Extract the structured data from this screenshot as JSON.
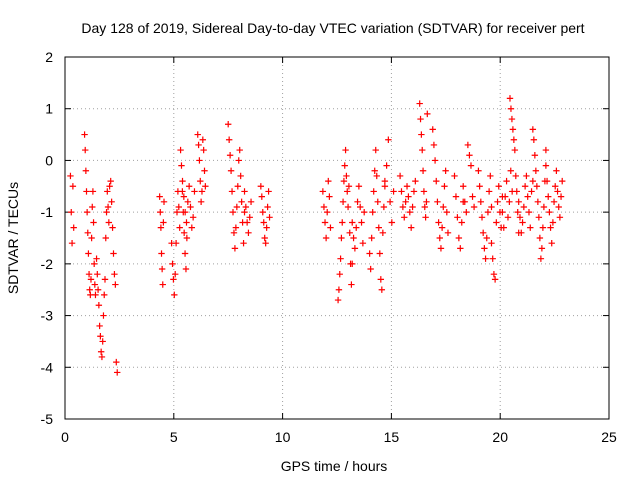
{
  "chart_data": {
    "type": "scatter",
    "title": "Day 128 of 2019, Sidereal Day-to-day VTEC variation (SDTVAR) for receiver pert",
    "xlabel": "GPS time / hours",
    "ylabel": "SDTVAR / TECUs",
    "xlim": [
      0,
      25
    ],
    "ylim": [
      -5,
      2
    ],
    "xticks": [
      "0",
      "5",
      "10",
      "15",
      "20",
      "25"
    ],
    "yticks": [
      "-5",
      "-4",
      "-3",
      "-2",
      "-1",
      "0",
      "1",
      "2"
    ],
    "grid": true,
    "marker": "+",
    "color": "#ff0000",
    "series": [
      {
        "name": "SDTVAR",
        "segments": [
          {
            "x0": 0.25,
            "x1": 0.4,
            "y": [
              -0.3,
              -1.0,
              -1.6,
              -0.5,
              -1.3
            ]
          },
          {
            "x0": 0.9,
            "x1": 1.4,
            "y": [
              0.5,
              0.2,
              -0.2,
              -0.6,
              -1.0,
              -1.4,
              -1.8,
              -2.2,
              -2.5,
              -2.6,
              -2.3,
              -1.5,
              -0.9,
              -0.6,
              -1.2,
              -2.0,
              -2.4,
              -2.6
            ]
          },
          {
            "x0": 1.45,
            "x1": 2.05,
            "y": [
              -1.9,
              -2.2,
              -2.5,
              -2.8,
              -3.2,
              -3.4,
              -3.7,
              -3.8,
              -3.5,
              -3.0,
              -2.6,
              -2.3,
              -1.5,
              -1.0,
              -0.6,
              -0.9,
              -1.2,
              -0.5
            ]
          },
          {
            "x0": 2.1,
            "x1": 2.4,
            "y": [
              -0.4,
              -0.8,
              -1.3,
              -1.8,
              -2.2,
              -2.4,
              -3.9,
              -4.1
            ]
          },
          {
            "x0": 4.35,
            "x1": 4.55,
            "y": [
              -0.7,
              -1.0,
              -1.3,
              -1.8,
              -2.1,
              -2.4,
              -1.2,
              -0.8
            ]
          },
          {
            "x0": 4.9,
            "x1": 5.6,
            "y": [
              -1.6,
              -2.0,
              -2.3,
              -2.6,
              -2.2,
              -1.6,
              -1.0,
              -0.6,
              -0.9,
              -1.3,
              0.2,
              -0.1,
              -0.6,
              -1.0,
              -1.4,
              -1.8,
              -2.1,
              -1.5
            ]
          },
          {
            "x0": 5.4,
            "x1": 5.95,
            "y": [
              -0.4,
              -0.7,
              -1.0,
              -1.2,
              -0.8,
              -0.5,
              -0.9,
              -1.3,
              -1.1,
              -0.6
            ]
          },
          {
            "x0": 6.1,
            "x1": 6.45,
            "y": [
              0.5,
              0.3,
              0.0,
              -0.4,
              -0.8,
              -0.6,
              0.4,
              0.2,
              -0.2,
              -0.5
            ]
          },
          {
            "x0": 7.5,
            "x1": 8.25,
            "y": [
              0.7,
              0.4,
              0.1,
              -0.2,
              -0.6,
              -1.0,
              -1.4,
              -1.7,
              -1.3,
              -0.9,
              -0.5,
              0.0,
              0.2,
              -0.3,
              -0.8,
              -1.2,
              -1.6,
              -1.0
            ]
          },
          {
            "x0": 8.25,
            "x1": 8.55,
            "y": [
              -0.6,
              -0.9,
              -1.2,
              -1.4,
              -1.1,
              -0.8
            ]
          },
          {
            "x0": 9.0,
            "x1": 9.4,
            "y": [
              -0.5,
              -0.7,
              -1.0,
              -1.2,
              -1.5,
              -1.6,
              -1.3,
              -0.9,
              -0.6,
              -1.1
            ]
          },
          {
            "x0": 11.85,
            "x1": 12.2,
            "y": [
              -0.6,
              -0.9,
              -1.2,
              -1.5,
              -1.0,
              -0.4,
              -0.7,
              -1.3
            ]
          },
          {
            "x0": 12.55,
            "x1": 13.2,
            "y": [
              -2.7,
              -2.5,
              -2.2,
              -1.9,
              -1.5,
              -1.2,
              -0.8,
              -0.4,
              -0.1,
              0.2,
              -0.3,
              -0.6,
              -0.9,
              -0.5,
              -1.4,
              -2.0,
              -2.4,
              -2.0
            ]
          },
          {
            "x0": 13.2,
            "x1": 13.75,
            "y": [
              -1.2,
              -1.5,
              -1.7,
              -1.3,
              -0.8,
              -0.5,
              -0.9,
              -1.2,
              -1.6,
              -1.0
            ]
          },
          {
            "x0": 14.0,
            "x1": 14.7,
            "y": [
              -1.8,
              -2.1,
              -1.5,
              -1.0,
              -0.6,
              -0.2,
              0.2,
              -0.3,
              -0.8,
              -1.3,
              -1.8,
              -2.3,
              -2.5,
              -1.4,
              -0.9,
              -0.5
            ]
          },
          {
            "x0": 14.7,
            "x1": 15.1,
            "y": [
              -0.4,
              -0.1,
              0.4,
              -0.8,
              -1.2,
              -0.6
            ]
          },
          {
            "x0": 15.4,
            "x1": 16.1,
            "y": [
              -0.3,
              -0.6,
              -0.9,
              -1.1,
              -0.8,
              -0.5,
              -0.7,
              -1.0,
              -1.3,
              -0.9,
              -0.6,
              -0.4
            ]
          },
          {
            "x0": 16.3,
            "x1": 16.65,
            "y": [
              1.1,
              0.8,
              0.5,
              0.2,
              -0.2,
              -0.6,
              -0.9,
              -1.1,
              -0.8,
              0.9
            ]
          },
          {
            "x0": 16.9,
            "x1": 17.6,
            "y": [
              0.6,
              0.3,
              0.0,
              -0.4,
              -0.8,
              -1.2,
              -1.5,
              -1.7,
              -1.3,
              -0.9,
              -0.5,
              -0.2,
              -1.0,
              -1.4
            ]
          },
          {
            "x0": 17.9,
            "x1": 18.3,
            "y": [
              -0.3,
              -0.7,
              -1.1,
              -1.5,
              -1.7,
              -1.2,
              -0.8
            ]
          },
          {
            "x0": 18.3,
            "x1": 18.8,
            "y": [
              -0.5,
              -0.8,
              -1.0,
              0.3,
              0.1,
              -0.1,
              -0.7,
              -0.9
            ]
          },
          {
            "x0": 19.0,
            "x1": 19.6,
            "y": [
              -0.2,
              -0.5,
              -0.8,
              -1.1,
              -1.4,
              -1.7,
              -1.9,
              -1.5,
              -1.0,
              -0.6,
              -0.3,
              -0.9
            ]
          },
          {
            "x0": 19.6,
            "x1": 20.1,
            "y": [
              -1.6,
              -1.9,
              -2.2,
              -2.3,
              -1.2,
              -0.8,
              -0.5,
              -1.0,
              -1.3,
              -0.7
            ]
          },
          {
            "x0": 20.1,
            "x1": 20.55,
            "y": [
              -1.0,
              -1.3,
              -0.7,
              -0.4,
              -1.1,
              -0.8,
              -0.2,
              -0.6
            ]
          },
          {
            "x0": 20.45,
            "x1": 20.85,
            "y": [
              1.2,
              1.0,
              0.8,
              0.6,
              0.4,
              0.2,
              -0.3,
              -0.6,
              -1.0,
              -1.4
            ]
          },
          {
            "x0": 20.85,
            "x1": 21.5,
            "y": [
              -0.8,
              -1.1,
              -1.4,
              -1.2,
              -0.9,
              -0.5,
              -0.3,
              -0.7,
              -1.0,
              -1.3,
              -0.6,
              -0.4
            ]
          },
          {
            "x0": 21.5,
            "x1": 22.1,
            "y": [
              0.6,
              0.4,
              0.1,
              -0.2,
              -0.5,
              -0.8,
              -1.1,
              -1.5,
              -1.9,
              -1.7,
              -1.3,
              -0.9,
              -0.4,
              0.2
            ]
          },
          {
            "x0": 22.1,
            "x1": 22.85,
            "y": [
              -0.1,
              -0.4,
              -0.7,
              -1.0,
              -1.3,
              -1.6,
              -1.2,
              -0.8,
              -0.5,
              -0.2,
              -0.6,
              -0.9,
              -1.1,
              -0.7,
              -0.4
            ]
          }
        ]
      }
    ]
  }
}
